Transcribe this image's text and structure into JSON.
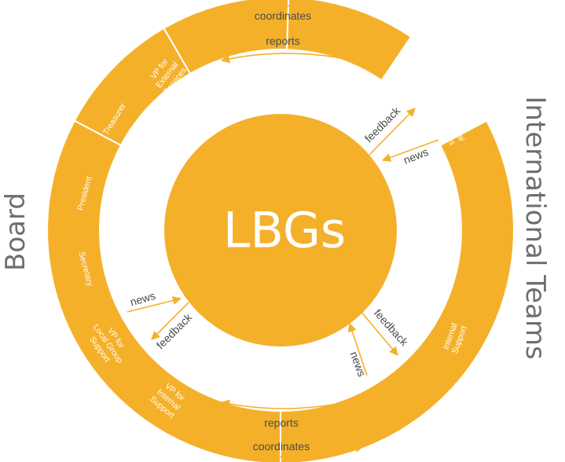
{
  "colors": {
    "segment": "#f5b02a",
    "arrow": "#f5b02a",
    "arrow_text": "#4a4a4a",
    "group_text": "#6e6e6e"
  },
  "center": {
    "label": "LBGs"
  },
  "groups": {
    "left": "Board",
    "right": "International Teams"
  },
  "board_roles": {
    "vp_external": [
      "VP for",
      "External",
      "Services"
    ],
    "treasurer": [
      "Treasurer"
    ],
    "president": [
      "President"
    ],
    "secretary": [
      "Secretary"
    ],
    "vp_local": [
      "VP for",
      "Local Group",
      "Support"
    ],
    "vp_internal": [
      "VP for",
      "Internal",
      "Support"
    ]
  },
  "teams": {
    "external": [
      "External",
      "Services"
    ],
    "internal": [
      "Internal",
      "Support"
    ]
  },
  "flows": {
    "top_coordinates": "coordinates",
    "top_reports": "reports",
    "bottom_reports": "reports",
    "bottom_coordinates": "coordinates",
    "ur_feedback": "feedback",
    "ur_news": "news",
    "ll_news": "news",
    "ll_feedback": "feedback",
    "lr_feedback": "feedback",
    "lr_news": "news"
  }
}
